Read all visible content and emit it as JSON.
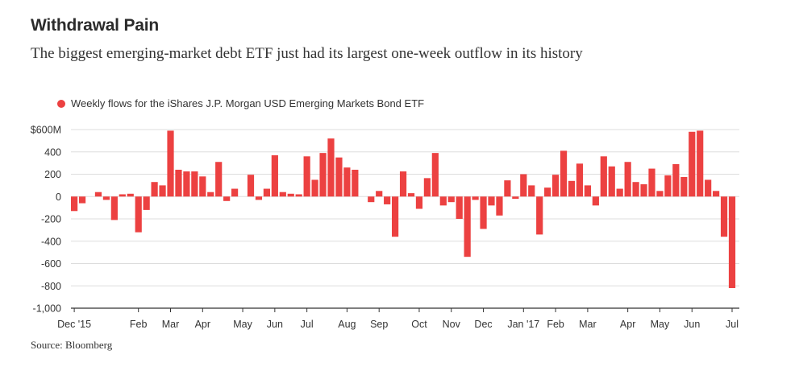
{
  "header": {
    "title": "Withdrawal Pain",
    "subtitle": "The biggest emerging-market debt ETF just had its largest one-week outflow in its history"
  },
  "footer": {
    "source": "Source: Bloomberg"
  },
  "colors": {
    "bar": "#ec4141",
    "grid": "#dddddd",
    "axis": "#333333",
    "text": "#333333"
  },
  "chart_data": {
    "type": "bar",
    "legend": [
      "Weekly flows for the iShares J.P. Morgan USD Emerging Markets Bond ETF"
    ],
    "legend_position": "top-left",
    "grid": true,
    "ylim": [
      -1000,
      600
    ],
    "y_ticks": [
      600,
      400,
      200,
      0,
      -200,
      -400,
      -600,
      -800,
      -1000
    ],
    "y_tick_labels": [
      "$600M",
      "400",
      "200",
      "0",
      "-200",
      "-400",
      "-600",
      "-800",
      "-1,000"
    ],
    "x_tick_labels": [
      "Dec '15",
      "Feb",
      "Mar",
      "Apr",
      "May",
      "Jun",
      "Jul",
      "Aug",
      "Sep",
      "Oct",
      "Nov",
      "Dec",
      "Jan '17",
      "Feb",
      "Mar",
      "Apr",
      "May",
      "Jun",
      "Jul"
    ],
    "x_tick_positions": [
      0,
      8,
      12,
      16,
      21,
      25,
      29,
      34,
      38,
      43,
      47,
      51,
      56,
      60,
      64,
      69,
      73,
      77,
      82
    ],
    "series": [
      {
        "name": "Weekly flows for the iShares J.P. Morgan USD Emerging Markets Bond ETF",
        "values": [
          -130,
          -60,
          0,
          40,
          -30,
          -210,
          20,
          25,
          -320,
          -120,
          130,
          100,
          590,
          240,
          225,
          225,
          180,
          40,
          310,
          -40,
          70,
          0,
          195,
          -30,
          70,
          370,
          40,
          25,
          20,
          360,
          150,
          390,
          520,
          350,
          260,
          240,
          0,
          -50,
          50,
          -70,
          -360,
          225,
          30,
          -110,
          165,
          390,
          -80,
          -50,
          -200,
          -540,
          -30,
          -290,
          -80,
          -170,
          145,
          -20,
          200,
          100,
          -340,
          80,
          195,
          410,
          140,
          295,
          100,
          -80,
          360,
          270,
          70,
          310,
          130,
          110,
          250,
          50,
          190,
          290,
          175,
          580,
          590,
          150,
          50,
          -360,
          -820
        ]
      }
    ]
  }
}
